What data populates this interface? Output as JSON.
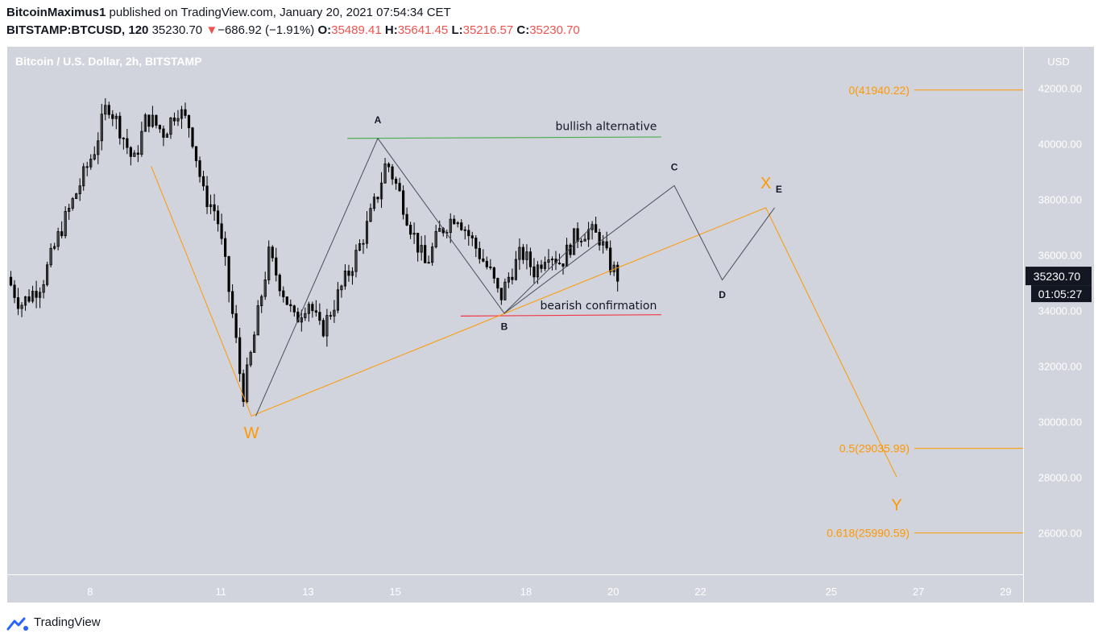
{
  "header": {
    "author": "BitcoinMaximus1",
    "published_text": "published on TradingView.com, January 20, 2021 07:54:34 CET",
    "symbol": "BITSTAMP:BTCUSD, 120",
    "last_price": "35230.70",
    "change_arrow": "▼",
    "change": "−686.92 (−1.91%)",
    "o_label": "O:",
    "o_value": "35489.41",
    "h_label": "H:",
    "h_value": "35641.45",
    "l_label": "L:",
    "l_value": "35216.57",
    "c_label": "C:",
    "c_value": "35230.70"
  },
  "footer": {
    "brand": "TradingView"
  },
  "colors": {
    "background": "#d1d4dc",
    "candle": "#000000",
    "orange": "#ff9800",
    "wave_line": "#4a4e59",
    "green": "#4caf50",
    "red": "#f23645",
    "axis_text": "#ffffff"
  },
  "chart_data": {
    "type": "candlestick",
    "title": "Bitcoin / U.S. Dollar, 2h, BITSTAMP",
    "currency_label": "USD",
    "y_ticks": [
      "42000.00",
      "40000.00",
      "38000.00",
      "36000.00",
      "34000.00",
      "32000.00",
      "30000.00",
      "28000.00",
      "26000.00"
    ],
    "ylim": [
      24500,
      43500
    ],
    "x_ticks": [
      "8",
      "11",
      "13",
      "15",
      "18",
      "20",
      "22",
      "25",
      "27",
      "29"
    ],
    "x_tick_days": [
      8,
      11,
      13,
      15,
      18,
      20,
      22,
      25,
      27,
      29
    ],
    "xlim": [
      6.1,
      29.4
    ],
    "last_price_label": "35230.70",
    "countdown_label": "01:05:27",
    "close_path": [
      [
        6.1,
        35200
      ],
      [
        6.4,
        34200
      ],
      [
        6.9,
        35000
      ],
      [
        7.3,
        36800
      ],
      [
        7.7,
        38300
      ],
      [
        8.1,
        39800
      ],
      [
        8.4,
        41500
      ],
      [
        8.7,
        40500
      ],
      [
        9.0,
        39300
      ],
      [
        9.3,
        41000
      ],
      [
        9.7,
        40400
      ],
      [
        10.0,
        41300
      ],
      [
        10.3,
        40600
      ],
      [
        10.6,
        38200
      ],
      [
        10.9,
        37500
      ],
      [
        11.1,
        35600
      ],
      [
        11.3,
        33500
      ],
      [
        11.5,
        30900
      ],
      [
        11.7,
        32500
      ],
      [
        11.9,
        34300
      ],
      [
        12.1,
        36000
      ],
      [
        12.4,
        34800
      ],
      [
        12.7,
        33600
      ],
      [
        13.0,
        34400
      ],
      [
        13.3,
        33200
      ],
      [
        13.7,
        34600
      ],
      [
        14.0,
        35600
      ],
      [
        14.3,
        36800
      ],
      [
        14.6,
        38200
      ],
      [
        14.8,
        39400
      ],
      [
        15.1,
        38200
      ],
      [
        15.4,
        36800
      ],
      [
        15.7,
        35600
      ],
      [
        16.0,
        36800
      ],
      [
        16.4,
        37500
      ],
      [
        16.8,
        36400
      ],
      [
        17.2,
        35300
      ],
      [
        17.4,
        34400
      ],
      [
        17.6,
        35200
      ],
      [
        17.9,
        36100
      ],
      [
        18.2,
        35400
      ],
      [
        18.5,
        36200
      ],
      [
        18.8,
        35700
      ],
      [
        19.1,
        36600
      ],
      [
        19.4,
        36900
      ],
      [
        19.7,
        36600
      ],
      [
        19.9,
        35700
      ],
      [
        20.1,
        35230
      ]
    ],
    "fib_levels": [
      {
        "label": "0(41940.22)",
        "value": 41940.22
      },
      {
        "label": "0.5(29035.99)",
        "value": 29035.99
      },
      {
        "label": "0.618(25990.59)",
        "value": 25990.59
      }
    ],
    "primary_wave_path": [
      [
        9.4,
        39200
      ],
      [
        11.7,
        30200
      ],
      [
        23.5,
        37700
      ],
      [
        26.5,
        28000
      ]
    ],
    "primary_labels": [
      {
        "text": "W",
        "x": 11.7,
        "y": 29400
      },
      {
        "text": "X",
        "x": 23.5,
        "y": 38400
      },
      {
        "text": "Y",
        "x": 26.5,
        "y": 26800
      }
    ],
    "sub_wave_path": [
      [
        11.8,
        30200
      ],
      [
        14.6,
        40200
      ],
      [
        17.5,
        33900
      ],
      [
        21.4,
        38500
      ],
      [
        22.5,
        35100
      ],
      [
        23.7,
        37700
      ]
    ],
    "corrective_wave_path": [
      [
        17.5,
        33900
      ],
      [
        19.5,
        37000
      ]
    ],
    "sub_labels": [
      {
        "text": "A",
        "x": 14.6,
        "y": 40750
      },
      {
        "text": "B",
        "x": 17.5,
        "y": 33300
      },
      {
        "text": "C",
        "x": 21.4,
        "y": 39050
      },
      {
        "text": "D",
        "x": 22.5,
        "y": 34450
      },
      {
        "text": "E",
        "x": 23.8,
        "y": 38250
      }
    ],
    "bullish_line": {
      "from": [
        13.9,
        40200
      ],
      "to": [
        21.1,
        40250
      ],
      "label": "bullish alternative",
      "label_pos": [
        21.0,
        40500
      ]
    },
    "bearish_line": {
      "from": [
        16.5,
        33800
      ],
      "to": [
        21.1,
        33850
      ],
      "label": "bearish confirmation",
      "label_pos": [
        21.0,
        34050
      ]
    }
  }
}
